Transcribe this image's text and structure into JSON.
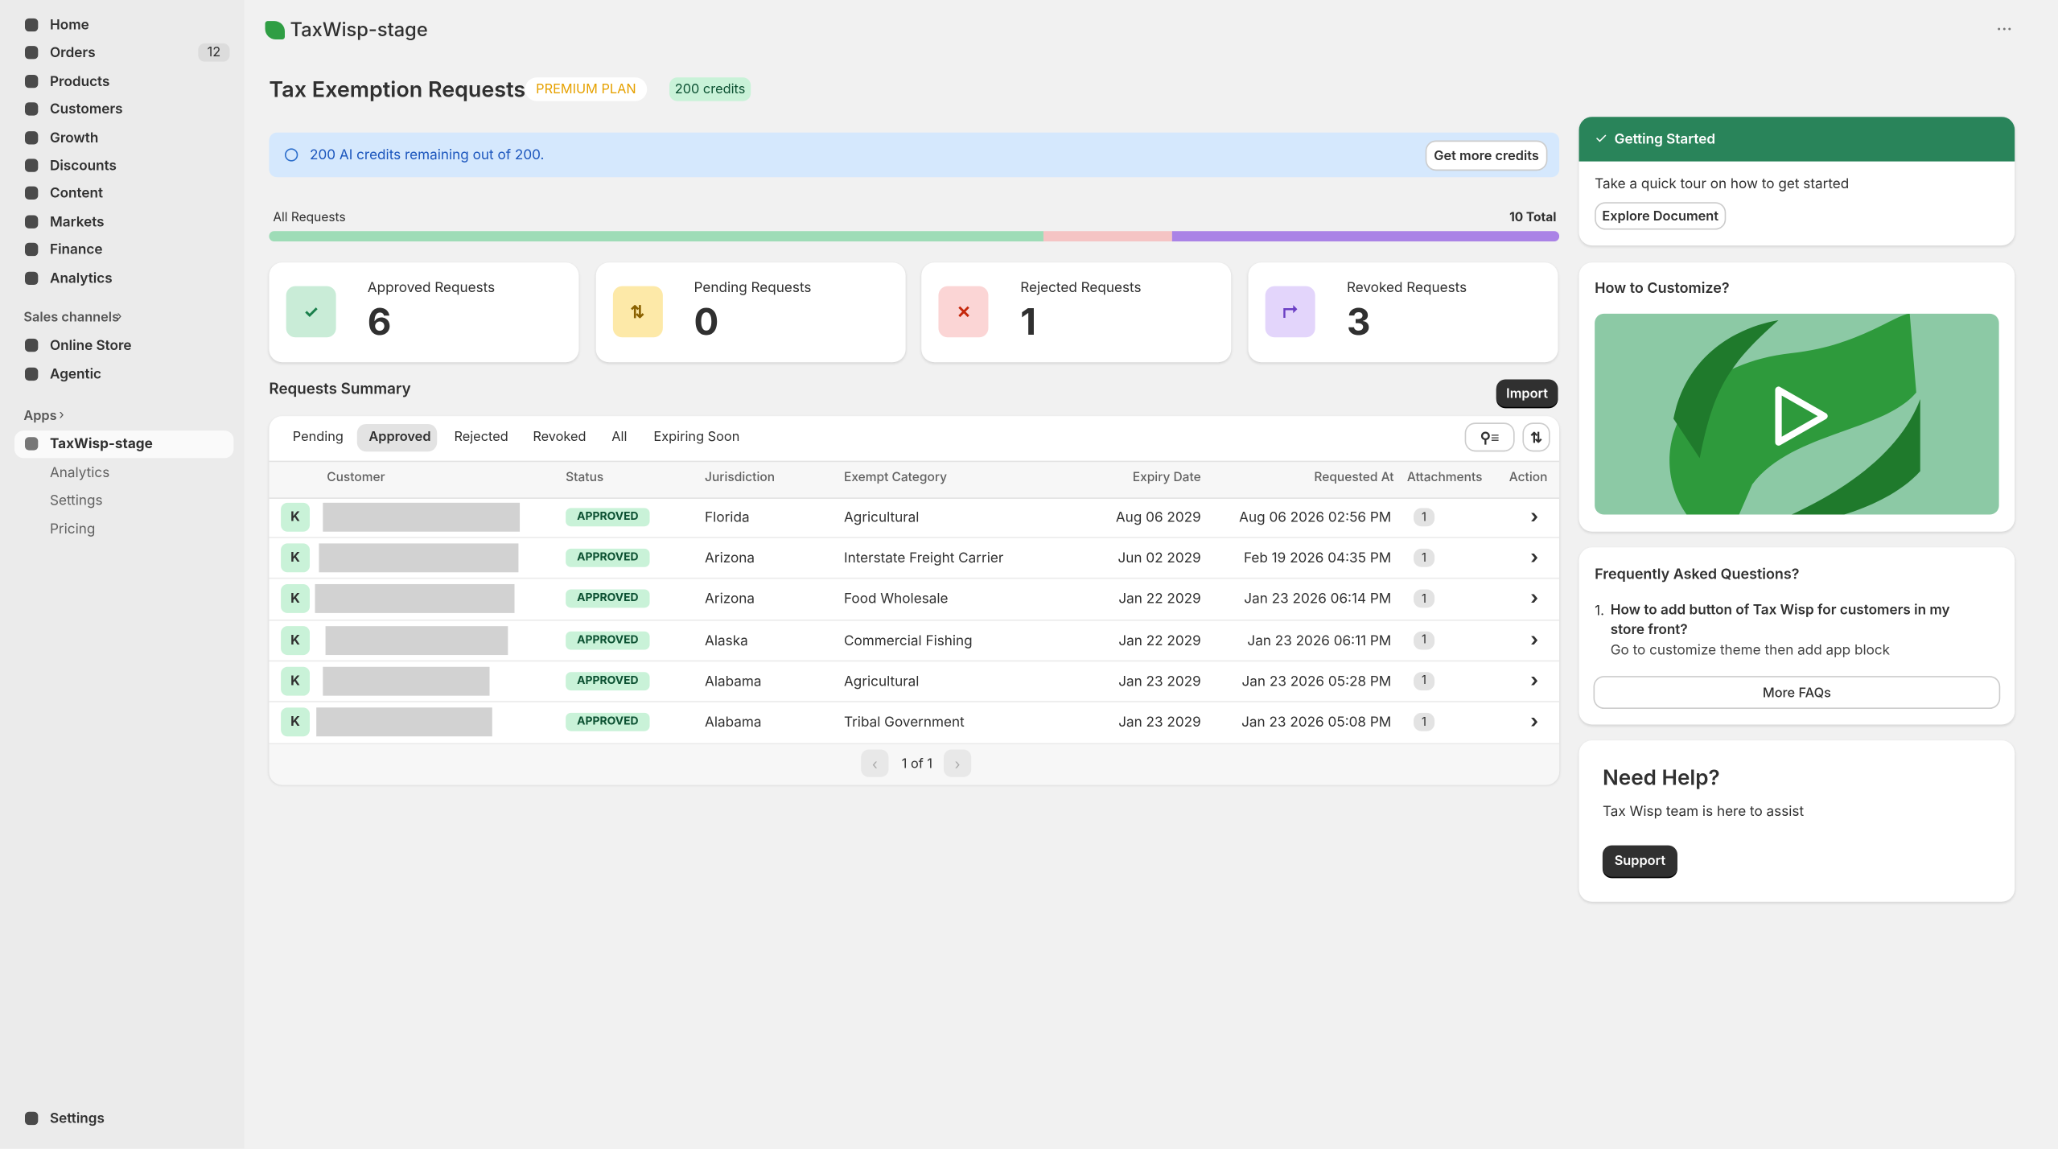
{
  "sidebar": {
    "nav": [
      {
        "label": "Home"
      },
      {
        "label": "Orders",
        "badge": "12"
      },
      {
        "label": "Products"
      },
      {
        "label": "Customers"
      },
      {
        "label": "Growth"
      },
      {
        "label": "Discounts"
      },
      {
        "label": "Content"
      },
      {
        "label": "Markets"
      },
      {
        "label": "Finance"
      },
      {
        "label": "Analytics"
      }
    ],
    "sales_channels_heading": "Sales channels",
    "sales_channels": [
      "Online Store",
      "Agentic"
    ],
    "apps_heading": "Apps",
    "app": "TaxWisp-stage",
    "app_sub": [
      "Analytics",
      "Settings",
      "Pricing"
    ],
    "settings": "Settings"
  },
  "header": {
    "store": "TaxWisp-stage"
  },
  "page": {
    "title": "Tax Exemption Requests",
    "plan": "PREMIUM PLAN",
    "credits": "200 credits"
  },
  "banner": {
    "text": "200 AI credits remaining out of 200.",
    "button": "Get more credits"
  },
  "progress": {
    "label": "All Requests",
    "total": "10 Total"
  },
  "stats": [
    {
      "label": "Approved Requests",
      "value": 6
    },
    {
      "label": "Pending Requests",
      "value": 0
    },
    {
      "label": "Rejected Requests",
      "value": 1
    },
    {
      "label": "Revoked Requests",
      "value": 3
    }
  ],
  "summary": {
    "title": "Requests Summary",
    "import": "Import",
    "tabs": [
      "Pending",
      "Approved",
      "Rejected",
      "Revoked",
      "All",
      "Expiring Soon"
    ]
  },
  "table": {
    "columns": [
      "Customer",
      "Status",
      "Jurisdiction",
      "Exempt Category",
      "Expiry Date",
      "Requested At",
      "Attachments",
      "Action"
    ],
    "rows": [
      [
        "K",
        "APPROVED",
        "Florida",
        "Agricultural",
        "Aug 06 2029",
        "Aug 06 2026 02:56 PM",
        "1"
      ],
      [
        "K",
        "APPROVED",
        "Arizona",
        "Interstate Freight Carrier",
        "Jun 02 2029",
        "Feb 19 2026 04:35 PM",
        "1"
      ],
      [
        "K",
        "APPROVED",
        "Arizona",
        "Food Wholesale",
        "Jan 22 2029",
        "Jan 23 2026 06:14 PM",
        "1"
      ],
      [
        "K",
        "APPROVED",
        "Alaska",
        "Commercial Fishing",
        "Jan 22 2029",
        "Jan 23 2026 06:11 PM",
        "1"
      ],
      [
        "K",
        "APPROVED",
        "Alabama",
        "Agricultural",
        "Jan 23 2029",
        "Jan 23 2026 05:28 PM",
        "1"
      ],
      [
        "K",
        "APPROVED",
        "Alabama",
        "Tribal Government",
        "Jan 23 2029",
        "Jan 23 2026 05:08 PM",
        "1"
      ]
    ],
    "pagination": "1 of 1"
  },
  "getting_started": {
    "title": "Getting Started",
    "text": "Take a quick tour on how to get started",
    "button": "Explore Document"
  },
  "customize": {
    "title": "How to Customize?"
  },
  "faq": {
    "title": "Frequently Asked Questions?",
    "items": [
      {
        "number": "1.",
        "question": "How to add button of Tax Wisp for customers in my store front?",
        "answer": "Go to customize theme then add app block"
      }
    ],
    "button": "More FAQs"
  },
  "help": {
    "title": "Need Help?",
    "text": "Tax Wisp team is here to assist",
    "button": "Support"
  }
}
